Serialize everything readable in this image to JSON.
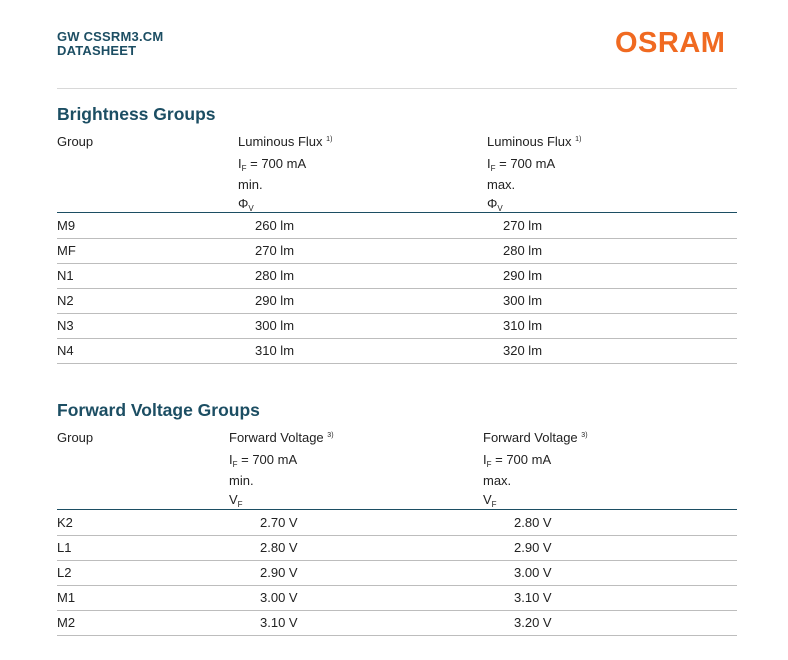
{
  "header": {
    "product": "GW CSSRM3.CM",
    "doc_type": "DATASHEET",
    "logo_text": "OSRAM",
    "brand_color": "#f06a21",
    "accent_color": "#1c4e63"
  },
  "brightness": {
    "title": "Brightness Groups",
    "col_group": "Group",
    "col_min": {
      "name": "Luminous Flux",
      "note": "1)",
      "cond_I": "I",
      "cond_sub": "F",
      "cond_val": " = 700 mA",
      "limit": "min.",
      "sym": "Φ",
      "sym_sub": "V"
    },
    "col_max": {
      "name": "Luminous Flux",
      "note": "1)",
      "cond_I": "I",
      "cond_sub": "F",
      "cond_val": " = 700 mA",
      "limit": "max.",
      "sym": "Φ",
      "sym_sub": "V"
    },
    "rows": [
      {
        "group": "M9",
        "min": "260 lm",
        "max": "270 lm"
      },
      {
        "group": "MF",
        "min": "270 lm",
        "max": "280 lm"
      },
      {
        "group": "N1",
        "min": "280 lm",
        "max": "290 lm"
      },
      {
        "group": "N2",
        "min": "290 lm",
        "max": "300 lm"
      },
      {
        "group": "N3",
        "min": "300 lm",
        "max": "310 lm"
      },
      {
        "group": "N4",
        "min": "310 lm",
        "max": "320 lm"
      }
    ]
  },
  "voltage": {
    "title": "Forward Voltage Groups",
    "col_group": "Group",
    "col_min": {
      "name": "Forward Voltage",
      "note": "3)",
      "cond_I": "I",
      "cond_sub": "F",
      "cond_val": " = 700 mA",
      "limit": "min.",
      "sym": "V",
      "sym_sub": "F"
    },
    "col_max": {
      "name": "Forward Voltage",
      "note": "3)",
      "cond_I": "I",
      "cond_sub": "F",
      "cond_val": " = 700 mA",
      "limit": "max.",
      "sym": "V",
      "sym_sub": "F"
    },
    "rows": [
      {
        "group": "K2",
        "min": "2.70 V",
        "max": "2.80 V"
      },
      {
        "group": "L1",
        "min": "2.80 V",
        "max": "2.90 V"
      },
      {
        "group": "L2",
        "min": "2.90 V",
        "max": "3.00 V"
      },
      {
        "group": "M1",
        "min": "3.00 V",
        "max": "3.10 V"
      },
      {
        "group": "M2",
        "min": "3.10 V",
        "max": "3.20 V"
      }
    ]
  }
}
